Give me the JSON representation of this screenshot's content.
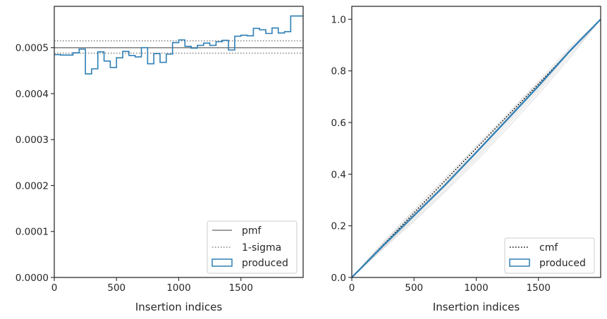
{
  "chart_data": [
    {
      "type": "histogram-step",
      "xlabel": "Insertion indices",
      "ylabel": "",
      "xlim": [
        0,
        2000
      ],
      "ylim": [
        0,
        0.00059
      ],
      "xticks": [
        0,
        500,
        1000,
        1500
      ],
      "xtick_labels": [
        "0",
        "500",
        "1000",
        "1500"
      ],
      "yticks": [
        0,
        0.0001,
        0.0002,
        0.0003,
        0.0004,
        0.0005
      ],
      "ytick_labels": [
        "0.0000",
        "0.0001",
        "0.0002",
        "0.0003",
        "0.0004",
        "0.0005"
      ],
      "pmf": 0.0005,
      "sigma_band": [
        0.000488,
        0.000515
      ],
      "bin_edges": [
        0,
        50,
        100,
        150,
        200,
        250,
        300,
        350,
        400,
        450,
        500,
        550,
        600,
        650,
        700,
        750,
        800,
        850,
        900,
        950,
        1000,
        1050,
        1100,
        1150,
        1200,
        1250,
        1300,
        1350,
        1400,
        1450,
        1500,
        1550,
        1600,
        1650,
        1700,
        1750,
        1800,
        1850,
        1900,
        1950,
        2000
      ],
      "produced": [
        0.000485,
        0.000484,
        0.000484,
        0.000489,
        0.000497,
        0.000443,
        0.000454,
        0.000491,
        0.000471,
        0.000457,
        0.000478,
        0.000492,
        0.000483,
        0.00048,
        0.0005,
        0.000465,
        0.000487,
        0.000468,
        0.000486,
        0.000511,
        0.000517,
        0.000503,
        0.000499,
        0.000505,
        0.00051,
        0.000505,
        0.000513,
        0.000516,
        0.000495,
        0.000525,
        0.000527,
        0.000526,
        0.000542,
        0.000539,
        0.000531,
        0.000543,
        0.000532,
        0.000535,
        0.000569,
        0.000569
      ],
      "legend": {
        "placement": "lower right",
        "entries": [
          {
            "label": "pmf",
            "style": "line",
            "color": "#808080"
          },
          {
            "label": "1-sigma",
            "style": "dotted",
            "color": "#808080"
          },
          {
            "label": "produced",
            "style": "patch",
            "color": "#2e7fb6"
          }
        ]
      }
    },
    {
      "type": "line",
      "xlabel": "Insertion indices",
      "ylabel": "",
      "xlim": [
        0,
        2000
      ],
      "ylim": [
        0,
        1.05
      ],
      "xticks": [
        0,
        500,
        1000,
        1500
      ],
      "xtick_labels": [
        "0",
        "500",
        "1000",
        "1500"
      ],
      "yticks": [
        0,
        0.2,
        0.4,
        0.6,
        0.8,
        1.0
      ],
      "ytick_labels": [
        "0.0",
        "0.2",
        "0.4",
        "0.6",
        "0.8",
        "1.0"
      ],
      "cmf": {
        "x": [
          0,
          2000
        ],
        "y": [
          0,
          1
        ]
      },
      "produced": {
        "x": [
          0,
          250,
          500,
          750,
          1000,
          1250,
          1500,
          1750,
          2000
        ],
        "y": [
          0,
          0.122,
          0.24,
          0.358,
          0.484,
          0.612,
          0.741,
          0.876,
          1.0
        ]
      },
      "background_series": [
        {
          "x": [
            0,
            250,
            500,
            750,
            1000,
            1250,
            1500,
            1750,
            2000
          ],
          "y": [
            0,
            0.13,
            0.255,
            0.375,
            0.5,
            0.625,
            0.75,
            0.88,
            1.0
          ]
        },
        {
          "x": [
            0,
            250,
            500,
            750,
            1000,
            1250,
            1500,
            1750,
            2000
          ],
          "y": [
            0,
            0.115,
            0.225,
            0.34,
            0.462,
            0.59,
            0.722,
            0.86,
            1.0
          ]
        },
        {
          "x": [
            0,
            250,
            500,
            750,
            1000,
            1250,
            1500,
            1750,
            2000
          ],
          "y": [
            0,
            0.118,
            0.232,
            0.35,
            0.47,
            0.6,
            0.73,
            0.87,
            1.0
          ]
        },
        {
          "x": [
            0,
            250,
            500,
            750,
            1000,
            1250,
            1500,
            1750,
            2000
          ],
          "y": [
            0,
            0.126,
            0.248,
            0.366,
            0.49,
            0.618,
            0.748,
            0.88,
            1.0
          ]
        },
        {
          "x": [
            0,
            250,
            500,
            750,
            1000,
            1250,
            1500,
            1750,
            2000
          ],
          "y": [
            0,
            0.11,
            0.218,
            0.332,
            0.452,
            0.578,
            0.71,
            0.85,
            1.0
          ]
        },
        {
          "x": [
            0,
            250,
            500,
            750,
            1000,
            1250,
            1500,
            1750,
            2000
          ],
          "y": [
            0,
            0.135,
            0.262,
            0.385,
            0.508,
            0.632,
            0.76,
            0.888,
            1.0
          ]
        },
        {
          "x": [
            0,
            250,
            500,
            750,
            1000,
            1250,
            1500,
            1750,
            2000
          ],
          "y": [
            0,
            0.12,
            0.236,
            0.355,
            0.48,
            0.608,
            0.738,
            0.874,
            1.0
          ]
        },
        {
          "x": [
            0,
            250,
            500,
            750,
            1000,
            1250,
            1500,
            1750,
            2000
          ],
          "y": [
            0,
            0.124,
            0.244,
            0.362,
            0.487,
            0.615,
            0.744,
            0.878,
            1.0
          ]
        }
      ],
      "legend": {
        "placement": "lower right",
        "entries": [
          {
            "label": "cmf",
            "style": "dotted",
            "color": "#000000"
          },
          {
            "label": "produced",
            "style": "patch",
            "color": "#2e7fb6"
          }
        ]
      }
    }
  ]
}
